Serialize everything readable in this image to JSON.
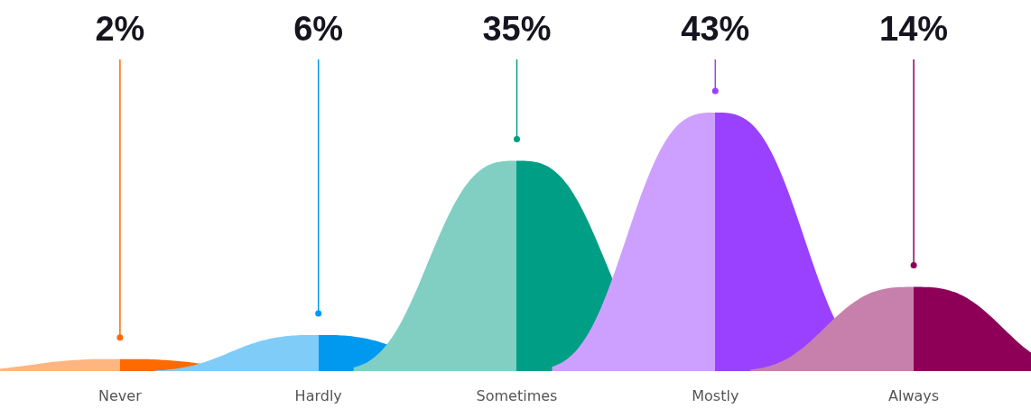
{
  "chart_data": {
    "type": "other",
    "categories": [
      "Never",
      "Hardly",
      "Sometimes",
      "Mostly",
      "Always"
    ],
    "values": [
      2,
      6,
      35,
      43,
      14
    ],
    "value_labels": [
      "2%",
      "6%",
      "35%",
      "43%",
      "14%"
    ],
    "colors": [
      "#ff6a00",
      "#0099f0",
      "#009e85",
      "#9a40ff",
      "#8e0058"
    ]
  }
}
